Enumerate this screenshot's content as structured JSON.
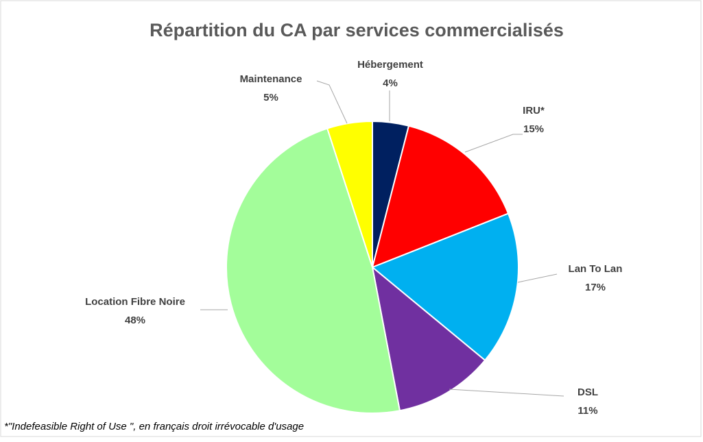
{
  "chart_data": {
    "type": "pie",
    "title": "Répartition du CA par services commercialisés",
    "categories": [
      "Hébergement",
      "IRU*",
      "Lan To Lan",
      "DSL",
      "Location Fibre Noire",
      "Maintenance"
    ],
    "values": [
      4,
      15,
      17,
      11,
      48,
      5
    ],
    "value_labels": [
      "4%",
      "15%",
      "17%",
      "11%",
      "48%",
      "5%"
    ],
    "colors": [
      "#002060",
      "#ff0000",
      "#00b0f0",
      "#7030a0",
      "#a3fd9a",
      "#ffff00"
    ],
    "footnote": "*\"Indefeasible Right of Use \", en français droit irrévocable d'usage"
  }
}
